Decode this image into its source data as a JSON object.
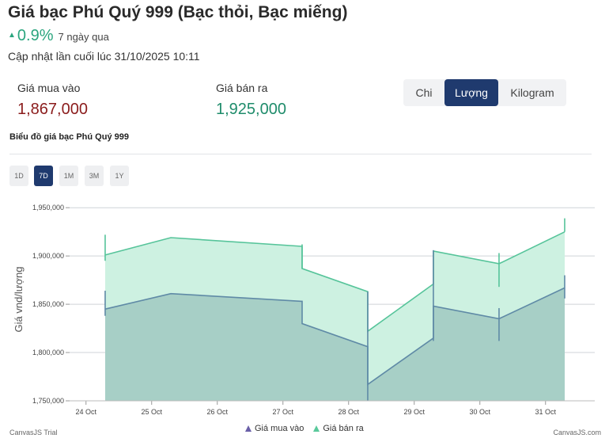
{
  "header": {
    "title": "Giá bạc Phú Quý 999 (Bạc thỏi, Bạc miếng)",
    "change_pct": "0.9%",
    "change_period": "7 ngày qua",
    "updated": "Cập nhật lần cuối lúc 31/10/2025 10:11"
  },
  "prices": {
    "buy_label": "Giá mua vào",
    "buy_value": "1,867,000",
    "sell_label": "Giá bán ra",
    "sell_value": "1,925,000"
  },
  "unit_tabs": {
    "items": [
      "Chi",
      "Lượng",
      "Kilogram"
    ],
    "selected": "Lượng"
  },
  "chart_section": {
    "title": "Biểu đồ giá bạc Phú Quý 999",
    "ranges": [
      "1D",
      "7D",
      "1M",
      "3M",
      "1Y"
    ],
    "selected_range": "7D"
  },
  "colors": {
    "buy_line": "#5f8aa6",
    "buy_fill": "#a7cfc6",
    "sell_line": "#56c49a",
    "sell_fill": "#cdf1e1",
    "positive": "#2aa57e",
    "accent": "#1f3a6e"
  },
  "chart_data": {
    "type": "area",
    "title": "",
    "xlabel": "",
    "ylabel": "Giá vnd/lượng",
    "x_ticks": [
      "24 Oct",
      "25 Oct",
      "26 Oct",
      "27 Oct",
      "28 Oct",
      "29 Oct",
      "30 Oct",
      "31 Oct"
    ],
    "y_ticks": [
      "1,750,000",
      "1,800,000",
      "1,850,000",
      "1,900,000",
      "1,950,000"
    ],
    "ylim": [
      1750000,
      1960000
    ],
    "xlim": [
      "2025-10-23 18:00",
      "2025-10-31 18:00"
    ],
    "grid": true,
    "legend_position": "bottom",
    "series": [
      {
        "name": "Giá mua vào",
        "points": [
          {
            "x": "2025-10-24 07:00",
            "y": 1845000
          },
          {
            "x": "2025-10-25 07:00",
            "y": 1861000
          },
          {
            "x": "2025-10-27 07:00",
            "y": 1853000
          },
          {
            "x": "2025-10-27 07:01",
            "y": 1830000
          },
          {
            "x": "2025-10-28 07:00",
            "y": 1806000
          },
          {
            "x": "2025-10-28 07:01",
            "y": 1767000
          },
          {
            "x": "2025-10-29 07:00",
            "y": 1815000
          },
          {
            "x": "2025-10-29 07:01",
            "y": 1848000
          },
          {
            "x": "2025-10-30 07:00",
            "y": 1835000
          },
          {
            "x": "2025-10-31 07:00",
            "y": 1867000
          }
        ]
      },
      {
        "name": "Giá bán ra",
        "points": [
          {
            "x": "2025-10-24 07:00",
            "y": 1901000
          },
          {
            "x": "2025-10-25 07:00",
            "y": 1919000
          },
          {
            "x": "2025-10-27 07:00",
            "y": 1910000
          },
          {
            "x": "2025-10-27 07:01",
            "y": 1887000
          },
          {
            "x": "2025-10-28 07:00",
            "y": 1863000
          },
          {
            "x": "2025-10-28 07:01",
            "y": 1822000
          },
          {
            "x": "2025-10-29 07:00",
            "y": 1871000
          },
          {
            "x": "2025-10-29 07:01",
            "y": 1905000
          },
          {
            "x": "2025-10-30 07:00",
            "y": 1892000
          },
          {
            "x": "2025-10-31 07:00",
            "y": 1925000
          }
        ]
      }
    ],
    "price_ticks": [
      {
        "x": "2025-10-24 07:00",
        "low": 1838000,
        "high": 1864000
      },
      {
        "x": "2025-10-24 07:00",
        "low": 1895000,
        "high": 1922000
      },
      {
        "x": "2025-10-27 07:00",
        "low": 1887000,
        "high": 1912000
      },
      {
        "x": "2025-10-28 07:00",
        "low": 1750000,
        "high": 1863000
      },
      {
        "x": "2025-10-29 07:00",
        "low": 1812000,
        "high": 1906000
      },
      {
        "x": "2025-10-30 07:00",
        "low": 1812000,
        "high": 1846000
      },
      {
        "x": "2025-10-30 07:00",
        "low": 1868000,
        "high": 1903000
      },
      {
        "x": "2025-10-31 07:00",
        "low": 1856000,
        "high": 1880000
      },
      {
        "x": "2025-10-31 07:00",
        "low": 1925000,
        "high": 1939000
      }
    ]
  },
  "footer": {
    "left_credit": "CanvasJS Trial",
    "right_credit": "CanvasJS.com"
  }
}
